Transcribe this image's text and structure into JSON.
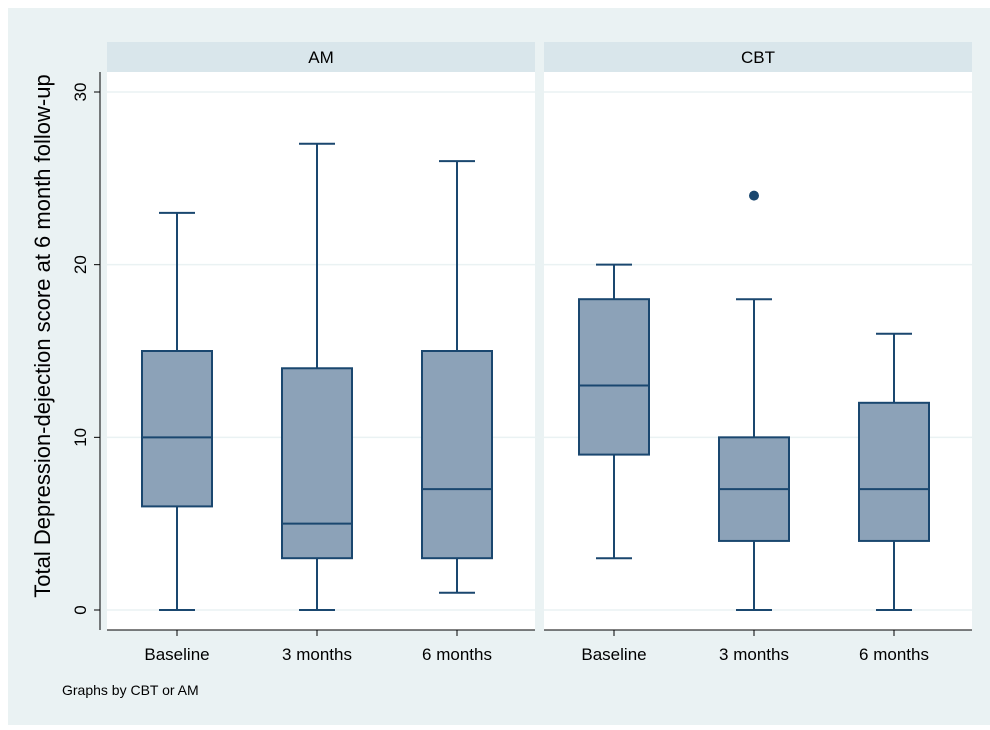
{
  "chart_data": {
    "type": "box",
    "ylabel": "Total Depression-dejection score at 6 month follow-up",
    "ylim": [
      -1,
      31
    ],
    "yticks": [
      0,
      10,
      20,
      30
    ],
    "ytick_labels": [
      "0",
      "10",
      "20",
      "30"
    ],
    "grid": true,
    "categories": [
      "Baseline",
      "3 months",
      "6 months"
    ],
    "note": "Graphs by CBT or AM",
    "box_color": "#8ca2b8",
    "line_color": "#1a476f",
    "outer_background": "#eaf2f3",
    "plot_background": "#ffffff",
    "strip_color": "#d9e6eb",
    "panels": [
      {
        "name": "AM",
        "boxes": [
          {
            "category": "Baseline",
            "min": 0,
            "q1": 6,
            "median": 10,
            "q3": 15,
            "max": 23,
            "outliers": []
          },
          {
            "category": "3 months",
            "min": 0,
            "q1": 3,
            "median": 5,
            "q3": 14,
            "max": 27,
            "outliers": []
          },
          {
            "category": "6 months",
            "min": 1,
            "q1": 3,
            "median": 7,
            "q3": 15,
            "max": 26,
            "outliers": []
          }
        ]
      },
      {
        "name": "CBT",
        "boxes": [
          {
            "category": "Baseline",
            "min": 3,
            "q1": 9,
            "median": 13,
            "q3": 18,
            "max": 20,
            "outliers": []
          },
          {
            "category": "3 months",
            "min": 0,
            "q1": 4,
            "median": 7,
            "q3": 10,
            "max": 18,
            "outliers": [
              24
            ]
          },
          {
            "category": "6 months",
            "min": 0,
            "q1": 4,
            "median": 7,
            "q3": 12,
            "max": 16,
            "outliers": []
          }
        ]
      }
    ]
  }
}
